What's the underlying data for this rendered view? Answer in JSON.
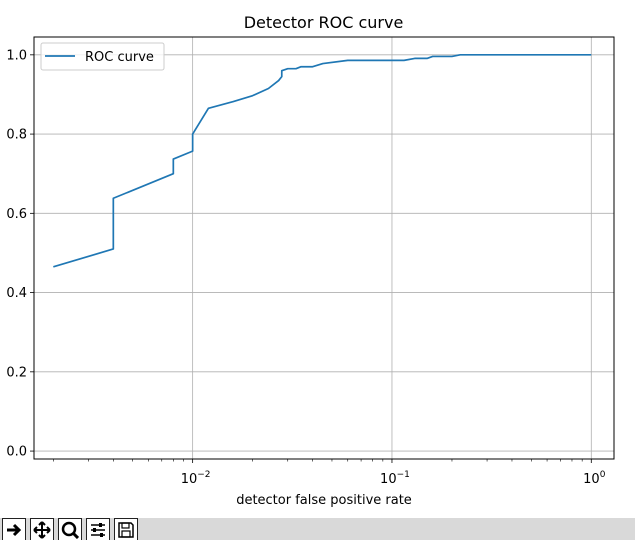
{
  "chart_data": {
    "type": "line",
    "title": "Detector ROC curve",
    "xlabel": "detector false positive rate",
    "ylabel": "",
    "xscale": "log",
    "xlim": [
      0.0016,
      1.3
    ],
    "ylim": [
      -0.02,
      1.045
    ],
    "grid": true,
    "legend_placement": "upper-left",
    "x_ticks": [
      {
        "value": 0.01,
        "base": "10",
        "exp": "−2"
      },
      {
        "value": 0.1,
        "base": "10",
        "exp": "−1"
      },
      {
        "value": 1,
        "base": "10",
        "exp": "0"
      }
    ],
    "y_ticks": [
      {
        "value": 0.0,
        "label": "0.0"
      },
      {
        "value": 0.2,
        "label": "0.2"
      },
      {
        "value": 0.4,
        "label": "0.4"
      },
      {
        "value": 0.6,
        "label": "0.6"
      },
      {
        "value": 0.8,
        "label": "0.8"
      },
      {
        "value": 1.0,
        "label": "1.0"
      }
    ],
    "series": [
      {
        "name": "ROC curve",
        "color": "#1f77b4",
        "x": [
          0.002,
          0.004,
          0.004,
          0.008,
          0.008,
          0.01,
          0.01,
          0.012,
          0.016,
          0.02,
          0.024,
          0.027,
          0.028,
          0.028,
          0.03,
          0.033,
          0.035,
          0.04,
          0.045,
          0.06,
          0.08,
          0.1,
          0.115,
          0.13,
          0.15,
          0.16,
          0.2,
          0.22,
          1.0
        ],
        "y": [
          0.465,
          0.51,
          0.638,
          0.7,
          0.737,
          0.757,
          0.8,
          0.865,
          0.882,
          0.897,
          0.915,
          0.935,
          0.945,
          0.96,
          0.965,
          0.965,
          0.97,
          0.97,
          0.978,
          0.986,
          0.986,
          0.986,
          0.986,
          0.991,
          0.991,
          0.996,
          0.996,
          1.0,
          1.0
        ]
      }
    ]
  },
  "toolbar": {
    "icons": [
      "forward-arrow-icon",
      "pan-icon",
      "zoom-icon",
      "configure-subplots-icon",
      "save-icon"
    ]
  }
}
